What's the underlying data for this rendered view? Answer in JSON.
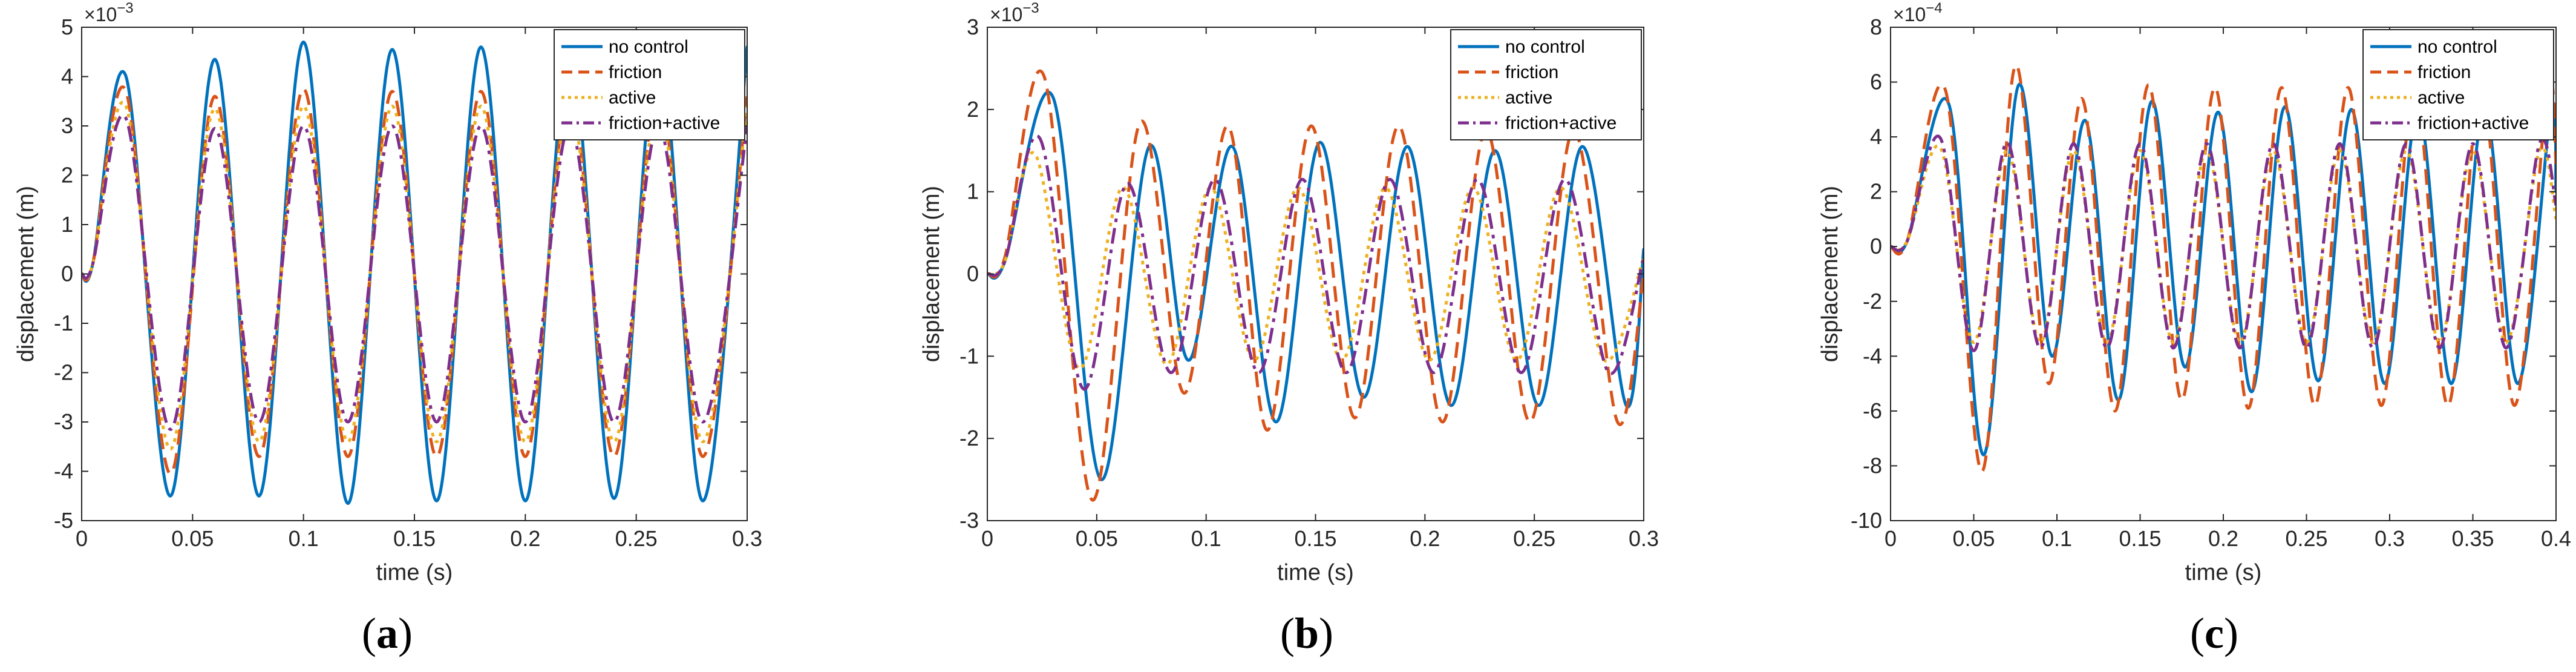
{
  "chart_data": [
    {
      "type": "line",
      "panel_label": {
        "open": "(",
        "letter": "a",
        "close": ")"
      },
      "xlabel": "time (s)",
      "ylabel": "displacement (m)",
      "exponent": {
        "base": "×10",
        "power": "−3"
      },
      "xlim": [
        0,
        0.3
      ],
      "ylim": [
        -5,
        5
      ],
      "xticks": [
        0,
        0.05,
        0.1,
        0.15,
        0.2,
        0.25,
        0.3
      ],
      "xtick_labels": [
        "0",
        "0.05",
        "0.1",
        "0.15",
        "0.2",
        "0.25",
        "0.3"
      ],
      "yticks": [
        -5,
        -4,
        -3,
        -2,
        -1,
        0,
        1,
        2,
        3,
        4,
        5
      ],
      "ytick_labels": [
        "-5",
        "-4",
        "-3",
        "-2",
        "-1",
        "0",
        "1",
        "2",
        "3",
        "4",
        "5"
      ],
      "grid": false,
      "legend_position": "top-right",
      "series": [
        {
          "name": "no control",
          "color": "#0072BD",
          "dash": "solid",
          "x": [
            0,
            0.005,
            0.02,
            0.04,
            0.06,
            0.08,
            0.1,
            0.12,
            0.14,
            0.16,
            0.18,
            0.2,
            0.22,
            0.24,
            0.26,
            0.28,
            0.3
          ],
          "y": [
            0,
            0.2,
            4.0,
            -4.5,
            4.35,
            -4.5,
            4.7,
            -4.65,
            4.55,
            -4.6,
            4.6,
            -4.6,
            4.55,
            -4.55,
            4.6,
            -4.6,
            4.6
          ]
        },
        {
          "name": "friction",
          "color": "#D95319",
          "dash": "dash",
          "x": [
            0,
            0.005,
            0.02,
            0.04,
            0.06,
            0.08,
            0.1,
            0.12,
            0.14,
            0.16,
            0.18,
            0.2,
            0.22,
            0.24,
            0.26,
            0.28,
            0.3
          ],
          "y": [
            0,
            0.2,
            3.7,
            -4.05,
            3.6,
            -3.7,
            3.75,
            -3.7,
            3.7,
            -3.7,
            3.7,
            -3.7,
            3.7,
            -3.7,
            3.7,
            -3.7,
            3.6
          ]
        },
        {
          "name": "active",
          "color": "#EDB120",
          "dash": "dot",
          "x": [
            0,
            0.005,
            0.02,
            0.04,
            0.06,
            0.08,
            0.1,
            0.12,
            0.14,
            0.16,
            0.18,
            0.2,
            0.22,
            0.24,
            0.26,
            0.28,
            0.3
          ],
          "y": [
            0,
            0.2,
            3.4,
            -3.55,
            3.35,
            -3.4,
            3.4,
            -3.4,
            3.4,
            -3.4,
            3.4,
            -3.4,
            3.4,
            -3.4,
            3.4,
            -3.4,
            3.4
          ]
        },
        {
          "name": "friction+active",
          "color": "#7E2F8E",
          "dash": "dashdot",
          "x": [
            0,
            0.005,
            0.02,
            0.04,
            0.06,
            0.08,
            0.1,
            0.12,
            0.14,
            0.16,
            0.18,
            0.2,
            0.22,
            0.24,
            0.26,
            0.28,
            0.3
          ],
          "y": [
            0,
            0.2,
            3.15,
            -3.15,
            2.95,
            -3.0,
            3.0,
            -3.0,
            3.0,
            -3.0,
            3.0,
            -3.0,
            3.0,
            -3.0,
            3.0,
            -3.0,
            3.0
          ]
        }
      ]
    },
    {
      "type": "line",
      "panel_label": {
        "open": "(",
        "letter": "b",
        "close": ")"
      },
      "xlabel": "time (s)",
      "ylabel": "displacement (m)",
      "exponent": {
        "base": "×10",
        "power": "−3"
      },
      "xlim": [
        0,
        0.3
      ],
      "ylim": [
        -3,
        3
      ],
      "xticks": [
        0,
        0.05,
        0.1,
        0.15,
        0.2,
        0.25,
        0.3
      ],
      "xtick_labels": [
        "0",
        "0.05",
        "0.1",
        "0.15",
        "0.2",
        "0.25",
        "0.3"
      ],
      "yticks": [
        -3,
        -2,
        -1,
        0,
        1,
        2,
        3
      ],
      "ytick_labels": [
        "-3",
        "-2",
        "-1",
        "0",
        "1",
        "2",
        "3"
      ],
      "grid": false,
      "legend_position": "top-right",
      "series": [
        {
          "name": "no control",
          "color": "#0072BD",
          "dash": "solid",
          "x": [
            0,
            0.008,
            0.03,
            0.052,
            0.074,
            0.092,
            0.112,
            0.132,
            0.152,
            0.172,
            0.192,
            0.212,
            0.232,
            0.252,
            0.272,
            0.292,
            0.3
          ],
          "y": [
            0,
            0.15,
            2.15,
            -2.5,
            1.55,
            -1.05,
            1.55,
            -1.8,
            1.6,
            -1.5,
            1.55,
            -1.6,
            1.5,
            -1.6,
            1.55,
            -1.6,
            0.3
          ]
        },
        {
          "name": "friction",
          "color": "#D95319",
          "dash": "dash",
          "x": [
            0,
            0.008,
            0.026,
            0.048,
            0.07,
            0.09,
            0.11,
            0.128,
            0.148,
            0.168,
            0.188,
            0.208,
            0.228,
            0.248,
            0.268,
            0.288,
            0.3
          ],
          "y": [
            0,
            0.2,
            2.4,
            -2.75,
            1.85,
            -1.45,
            1.8,
            -1.9,
            1.8,
            -1.75,
            1.8,
            -1.8,
            1.75,
            -1.8,
            1.75,
            -1.8,
            0.0
          ]
        },
        {
          "name": "active",
          "color": "#EDB120",
          "dash": "dot",
          "x": [
            0,
            0.008,
            0.022,
            0.042,
            0.062,
            0.082,
            0.102,
            0.122,
            0.142,
            0.162,
            0.182,
            0.202,
            0.222,
            0.242,
            0.262,
            0.282,
            0.3
          ],
          "y": [
            0,
            0.15,
            1.45,
            -1.15,
            1.05,
            -1.1,
            1.05,
            -1.05,
            1.05,
            -1.05,
            1.05,
            -1.05,
            1.05,
            -1.05,
            1.05,
            -1.05,
            0.2
          ]
        },
        {
          "name": "friction+active",
          "color": "#7E2F8E",
          "dash": "dashdot",
          "x": [
            0,
            0.008,
            0.024,
            0.044,
            0.064,
            0.084,
            0.104,
            0.124,
            0.144,
            0.164,
            0.184,
            0.204,
            0.224,
            0.244,
            0.264,
            0.284,
            0.3
          ],
          "y": [
            0,
            0.15,
            1.65,
            -1.4,
            1.1,
            -1.2,
            1.15,
            -1.2,
            1.15,
            -1.2,
            1.15,
            -1.2,
            1.15,
            -1.2,
            1.15,
            -1.2,
            0.2
          ]
        }
      ]
    },
    {
      "type": "line",
      "panel_label": {
        "open": "(",
        "letter": "c",
        "close": ")"
      },
      "xlabel": "time (s)",
      "ylabel": "displacement (m)",
      "exponent": {
        "base": "×10",
        "power": "−4"
      },
      "xlim": [
        0,
        0.4
      ],
      "ylim": [
        -10,
        8
      ],
      "xticks": [
        0,
        0.05,
        0.1,
        0.15,
        0.2,
        0.25,
        0.3,
        0.35,
        0.4
      ],
      "xtick_labels": [
        "0",
        "0.05",
        "0.1",
        "0.15",
        "0.2",
        "0.25",
        "0.3",
        "0.35",
        "0.4"
      ],
      "yticks": [
        -10,
        -8,
        -6,
        -4,
        -2,
        0,
        2,
        4,
        6,
        8
      ],
      "ytick_labels": [
        "-10",
        "-8",
        "-6",
        "-4",
        "-2",
        "0",
        "2",
        "4",
        "6",
        "8"
      ],
      "grid": false,
      "legend_position": "top-right",
      "series": [
        {
          "name": "no control",
          "color": "#0072BD",
          "dash": "solid",
          "x": [
            0,
            0.01,
            0.035,
            0.056,
            0.077,
            0.097,
            0.117,
            0.137,
            0.157,
            0.177,
            0.197,
            0.217,
            0.237,
            0.257,
            0.277,
            0.297,
            0.317,
            0.337,
            0.357,
            0.377,
            0.397,
            0.4
          ],
          "y": [
            0,
            0.2,
            5.2,
            -7.6,
            5.9,
            -4.0,
            4.6,
            -5.6,
            5.3,
            -4.4,
            4.9,
            -5.3,
            5.1,
            -4.9,
            5.0,
            -5.0,
            5.0,
            -5.0,
            5.0,
            -5.0,
            5.0,
            2.0
          ]
        },
        {
          "name": "friction",
          "color": "#D95319",
          "dash": "dash",
          "x": [
            0,
            0.01,
            0.033,
            0.055,
            0.075,
            0.095,
            0.115,
            0.135,
            0.155,
            0.175,
            0.195,
            0.215,
            0.235,
            0.255,
            0.275,
            0.295,
            0.315,
            0.335,
            0.355,
            0.375,
            0.395,
            0.4
          ],
          "y": [
            0,
            0.2,
            5.7,
            -8.2,
            6.6,
            -5.0,
            5.4,
            -6.0,
            5.9,
            -5.6,
            5.8,
            -5.9,
            5.8,
            -5.8,
            5.8,
            -5.8,
            5.8,
            -5.8,
            5.8,
            -5.8,
            5.8,
            3.0
          ]
        },
        {
          "name": "active",
          "color": "#EDB120",
          "dash": "dot",
          "x": [
            0,
            0.01,
            0.03,
            0.05,
            0.07,
            0.09,
            0.11,
            0.13,
            0.15,
            0.17,
            0.19,
            0.21,
            0.23,
            0.25,
            0.27,
            0.29,
            0.31,
            0.33,
            0.35,
            0.37,
            0.39,
            0.4
          ],
          "y": [
            0,
            0.2,
            3.6,
            -3.5,
            3.5,
            -3.5,
            3.5,
            -3.5,
            3.5,
            -3.5,
            3.5,
            -3.5,
            3.5,
            -3.5,
            3.5,
            -3.5,
            3.5,
            -3.5,
            3.5,
            -3.5,
            3.5,
            1.0
          ]
        },
        {
          "name": "friction+active",
          "color": "#7E2F8E",
          "dash": "dashdot",
          "x": [
            0,
            0.01,
            0.03,
            0.05,
            0.07,
            0.09,
            0.11,
            0.13,
            0.15,
            0.17,
            0.19,
            0.21,
            0.23,
            0.25,
            0.27,
            0.29,
            0.31,
            0.33,
            0.35,
            0.37,
            0.39,
            0.4
          ],
          "y": [
            0,
            0.2,
            3.95,
            -3.8,
            3.8,
            -3.7,
            3.75,
            -3.7,
            3.75,
            -3.7,
            3.75,
            -3.7,
            3.75,
            -3.7,
            3.75,
            -3.7,
            3.75,
            -3.7,
            3.75,
            -3.7,
            3.75,
            1.5
          ]
        }
      ]
    }
  ]
}
